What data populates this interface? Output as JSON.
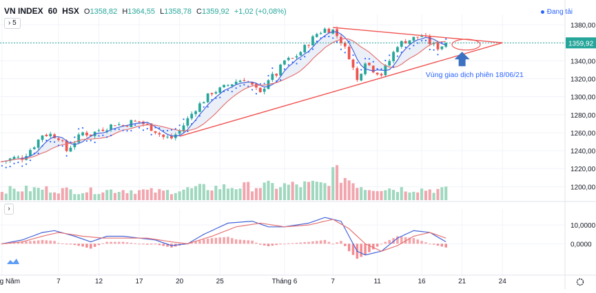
{
  "header": {
    "symbol": "VN INDEX",
    "interval": "60",
    "exchange": "HSX",
    "o_label": "O",
    "o_value": "1358,82",
    "h_label": "H",
    "h_value": "1364,55",
    "l_label": "L",
    "l_value": "1358,78",
    "c_label": "C",
    "c_value": "1359,92",
    "change": "+1,02 (+0,08%)"
  },
  "status": "Đang tải",
  "toolbar": {
    "collapse_toggle": "5",
    "macd_toggle": "›"
  },
  "colors": {
    "up": "#26a69a",
    "down": "#ef5350",
    "vol_up": "#9fd8bf",
    "vol_down": "#f1a6ae",
    "trendline": "#ef5350",
    "bb_fill": "#e9edf7",
    "ma_fast": "#4363d8",
    "ma_slow": "#e57373",
    "sar": "#2962ff",
    "price_line": "#26a69a",
    "arrow": "#3d72c2",
    "annotation": "#2962ff"
  },
  "chart_data": {
    "type": "candlestick",
    "title": "VN INDEX, 60, HSX",
    "y_axis": {
      "ylim": [
        1185,
        1390
      ],
      "ticks": [
        1200,
        1220,
        1240,
        1260,
        1280,
        1300,
        1320,
        1340,
        1360,
        1380
      ],
      "tick_labels": [
        "1200,00",
        "1220,00",
        "1240,00",
        "1260,00",
        "1280,00",
        "1300,00",
        "1320,00",
        "1340,00",
        "1360,00",
        "1380,00"
      ]
    },
    "x_axis": {
      "tick_labels": [
        "Tháng Năm",
        "7",
        "12",
        "17",
        "20",
        "25",
        "Tháng 6",
        "7",
        "11",
        "16",
        "21",
        "24"
      ],
      "tick_positions": [
        0,
        14,
        24,
        34,
        44,
        54,
        70,
        82,
        93,
        104,
        114,
        124
      ],
      "n_slots": 140
    },
    "current_price": {
      "value": 1359.92,
      "label": "1359,92"
    },
    "price_anchors": [
      [
        0,
        1228
      ],
      [
        3,
        1232
      ],
      [
        5,
        1232
      ],
      [
        8,
        1246
      ],
      [
        10,
        1258
      ],
      [
        12,
        1258
      ],
      [
        14,
        1255
      ],
      [
        16,
        1240
      ],
      [
        18,
        1250
      ],
      [
        20,
        1260
      ],
      [
        22,
        1258
      ],
      [
        24,
        1263
      ],
      [
        26,
        1266
      ],
      [
        28,
        1270
      ],
      [
        30,
        1268
      ],
      [
        32,
        1272
      ],
      [
        34,
        1272
      ],
      [
        36,
        1268
      ],
      [
        38,
        1262
      ],
      [
        40,
        1255
      ],
      [
        42,
        1254
      ],
      [
        44,
        1262
      ],
      [
        46,
        1275
      ],
      [
        48,
        1287
      ],
      [
        50,
        1296
      ],
      [
        52,
        1305
      ],
      [
        54,
        1308
      ],
      [
        56,
        1313
      ],
      [
        58,
        1317
      ],
      [
        60,
        1320
      ],
      [
        62,
        1312
      ],
      [
        64,
        1303
      ],
      [
        66,
        1320
      ],
      [
        68,
        1325
      ],
      [
        70,
        1340
      ],
      [
        72,
        1342
      ],
      [
        74,
        1350
      ],
      [
        76,
        1360
      ],
      [
        78,
        1370
      ],
      [
        80,
        1375
      ],
      [
        82,
        1374
      ],
      [
        84,
        1362
      ],
      [
        86,
        1345
      ],
      [
        88,
        1318
      ],
      [
        90,
        1340
      ],
      [
        92,
        1330
      ],
      [
        94,
        1325
      ],
      [
        96,
        1340
      ],
      [
        98,
        1358
      ],
      [
        100,
        1362
      ],
      [
        102,
        1365
      ],
      [
        104,
        1368
      ],
      [
        106,
        1360
      ],
      [
        108,
        1355
      ],
      [
        110,
        1359
      ]
    ],
    "volume_anchors": [
      [
        0,
        18
      ],
      [
        10,
        20
      ],
      [
        20,
        16
      ],
      [
        30,
        18
      ],
      [
        40,
        15
      ],
      [
        50,
        22
      ],
      [
        60,
        24
      ],
      [
        70,
        26
      ],
      [
        80,
        28
      ],
      [
        82,
        48
      ],
      [
        85,
        40
      ],
      [
        90,
        22
      ],
      [
        100,
        20
      ],
      [
        110,
        18
      ]
    ],
    "trendlines": [
      {
        "from": [
          44,
          1256
        ],
        "to": [
          124,
          1360
        ]
      },
      {
        "from": [
          82,
          1377
        ],
        "to": [
          124,
          1360
        ]
      }
    ],
    "annotation": {
      "text": "Vùng giao dịch phiên 18/06/21",
      "x": 105,
      "y": 1322
    },
    "ellipse": {
      "x": 115,
      "y": 1358,
      "rx": 3.5,
      "ry": 6
    },
    "arrow": {
      "x": 114,
      "y_tip": 1350,
      "y_base": 1334
    },
    "volume_ylim": [
      0,
      60
    ],
    "macd": {
      "ylim": [
        -16,
        17
      ],
      "ticks": [
        0,
        10
      ],
      "tick_labels": [
        "0,0000",
        "10,0000"
      ],
      "macd_anchors": [
        [
          0,
          0
        ],
        [
          5,
          2
        ],
        [
          10,
          6
        ],
        [
          13,
          7
        ],
        [
          18,
          4
        ],
        [
          22,
          1
        ],
        [
          26,
          4
        ],
        [
          30,
          4
        ],
        [
          34,
          3
        ],
        [
          38,
          2
        ],
        [
          42,
          -1
        ],
        [
          46,
          0
        ],
        [
          50,
          5
        ],
        [
          56,
          11
        ],
        [
          62,
          12
        ],
        [
          66,
          9
        ],
        [
          70,
          9
        ],
        [
          76,
          11
        ],
        [
          80,
          14
        ],
        [
          84,
          12
        ],
        [
          88,
          -4
        ],
        [
          90,
          -6
        ],
        [
          94,
          -4
        ],
        [
          98,
          3
        ],
        [
          102,
          7
        ],
        [
          106,
          6
        ],
        [
          110,
          1
        ]
      ],
      "signal_anchors": [
        [
          0,
          0
        ],
        [
          5,
          1
        ],
        [
          10,
          4
        ],
        [
          14,
          6
        ],
        [
          20,
          4
        ],
        [
          25,
          3
        ],
        [
          30,
          3
        ],
        [
          36,
          3
        ],
        [
          42,
          1
        ],
        [
          46,
          0
        ],
        [
          52,
          4
        ],
        [
          58,
          9
        ],
        [
          64,
          11
        ],
        [
          70,
          9
        ],
        [
          76,
          10
        ],
        [
          82,
          13
        ],
        [
          86,
          8
        ],
        [
          90,
          0
        ],
        [
          94,
          -4
        ],
        [
          98,
          -1
        ],
        [
          102,
          4
        ],
        [
          106,
          6
        ],
        [
          110,
          3
        ]
      ]
    }
  }
}
